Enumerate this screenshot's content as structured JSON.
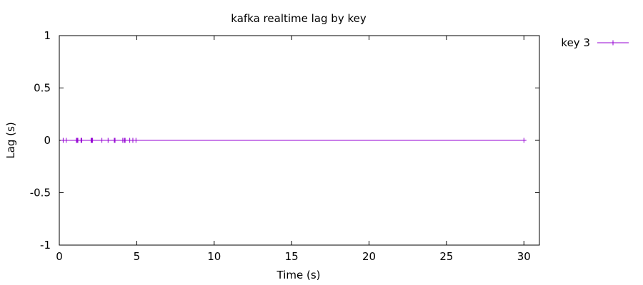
{
  "chart_data": {
    "type": "line",
    "title": "kafka realtime lag by key",
    "xlabel": "Time (s)",
    "ylabel": "Lag (s)",
    "xlim": [
      0,
      31
    ],
    "ylim": [
      -1,
      1
    ],
    "x_ticks": [
      0,
      5,
      10,
      15,
      20,
      25,
      30
    ],
    "y_ticks": [
      1,
      0.5,
      0,
      -0.5,
      -1
    ],
    "x_tick_labels": [
      "0",
      "5",
      "10",
      "15",
      "20",
      "25",
      "30"
    ],
    "y_tick_labels": [
      "1",
      "0.5",
      "0",
      "-0.5",
      "-1"
    ],
    "legend_position": "outside-top-right",
    "grid": false,
    "series": [
      {
        "name": "key 3",
        "color": "#9400d3",
        "marker": "plus",
        "x": [
          0.25,
          0.45,
          1.1,
          1.15,
          1.2,
          1.4,
          1.45,
          2.05,
          2.1,
          2.15,
          2.75,
          3.15,
          3.55,
          3.6,
          4.1,
          4.2,
          4.25,
          4.55,
          4.75,
          4.95,
          30.0
        ],
        "y": [
          0,
          0,
          0,
          0,
          0,
          0,
          0,
          0,
          0,
          0,
          0,
          0,
          0,
          0,
          0,
          0,
          0,
          0,
          0,
          0,
          0
        ]
      }
    ]
  }
}
